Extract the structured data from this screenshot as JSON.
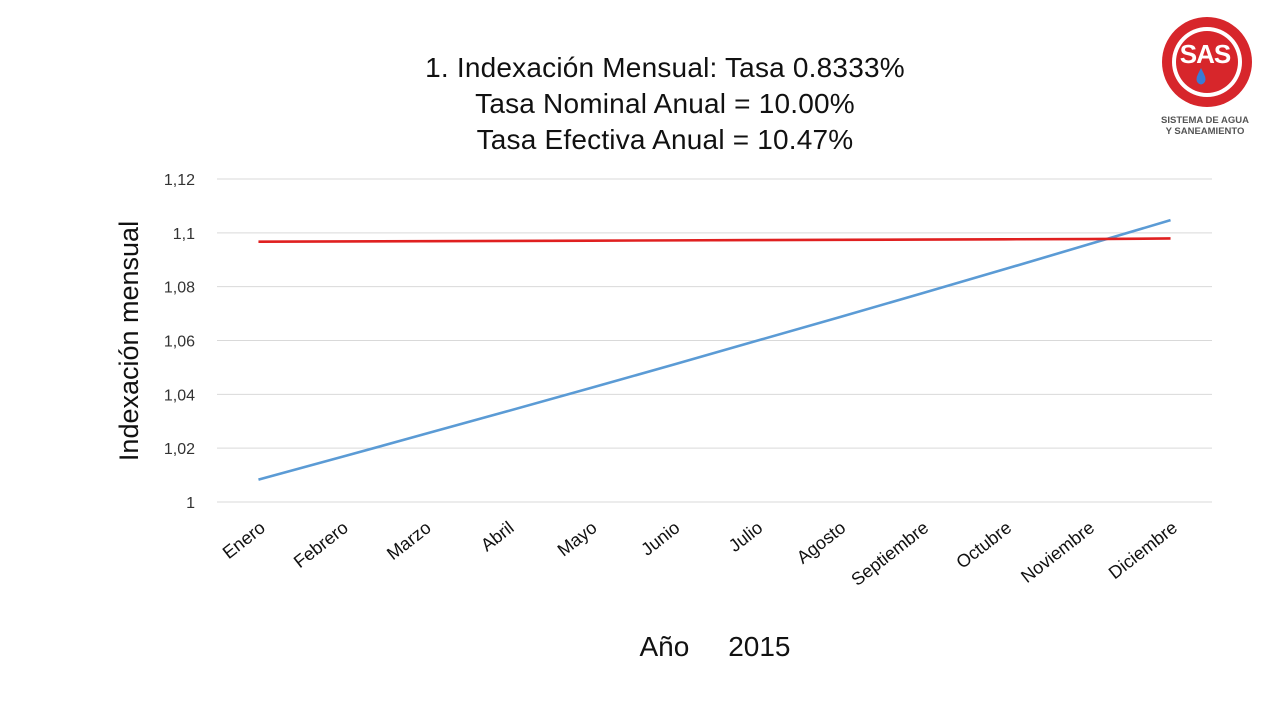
{
  "logo": {
    "brand": "SAS",
    "line1": "SISTEMA DE AGUA",
    "line2": "Y SANEAMIENTO"
  },
  "chart_data": {
    "type": "line",
    "title": "1. Indexación Mensual: Tasa 0.8333%",
    "subtitle1": "Tasa Nominal Anual = 10.00%",
    "subtitle2": "Tasa Efectiva Anual = 10.47%",
    "xlabel": "Año     2015",
    "ylabel": "Indexación mensual",
    "categories": [
      "Enero",
      "Febrero",
      "Marzo",
      "Abril",
      "Mayo",
      "Junio",
      "Julio",
      "Agosto",
      "Septiembre",
      "Octubre",
      "Noviembre",
      "Diciembre"
    ],
    "ylim": [
      1,
      1.12
    ],
    "yticks": [
      1,
      1.02,
      1.04,
      1.06,
      1.08,
      1.1,
      1.12
    ],
    "ytick_labels": [
      "1",
      "1,02",
      "1,04",
      "1,06",
      "1,08",
      "1,1",
      "1,12"
    ],
    "grid": true,
    "series": [
      {
        "color": "#5b9bd5",
        "values": [
          1.0083,
          1.0167,
          1.0252,
          1.0337,
          1.0423,
          1.051,
          1.0598,
          1.0686,
          1.0775,
          1.0865,
          1.0956,
          1.1047
        ]
      },
      {
        "color": "#e02020",
        "values": [
          1.0967,
          1.0968,
          1.0969,
          1.097,
          1.0971,
          1.0972,
          1.0973,
          1.0974,
          1.0975,
          1.0976,
          1.0977,
          1.0979
        ]
      }
    ]
  }
}
